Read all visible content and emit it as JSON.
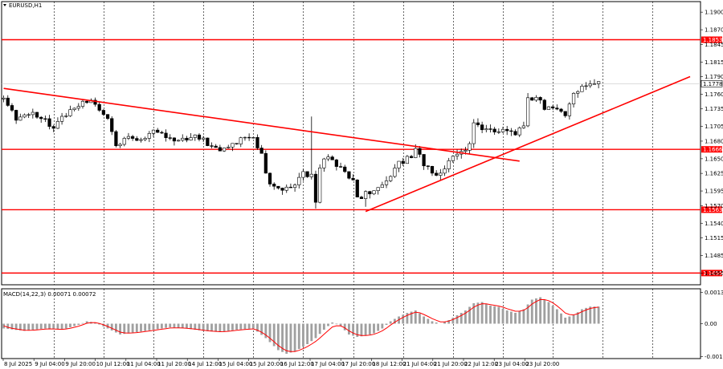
{
  "symbol_title": "EURUSD,H1",
  "macd_title": "MACD(14,22,3) 0.00071 0.00072",
  "colors": {
    "background": "#ffffff",
    "candle": "#000000",
    "grid": "#000000",
    "level": "#ff0000",
    "trendline": "#ff0000",
    "macd_hist": "#a0a0a0",
    "signal": "#ff0000",
    "price_tag_bg": "#ff0000",
    "current_price_bg": "#ffffff"
  },
  "chart_data": [
    {
      "type": "candlestick",
      "title": "EURUSD,H1",
      "ylim": [
        1.1455,
        1.19
      ],
      "y_ticks": [
        "1.1900",
        "1.1870",
        "1.1845",
        "1.1815",
        "1.1790",
        "1.1760",
        "1.1735",
        "1.1705",
        "1.1680",
        "1.1650",
        "1.1625",
        "1.1595",
        "1.1570",
        "1.1540",
        "1.1515",
        "1.1485",
        "1.1455"
      ],
      "x_tick_labels": [
        "8 Jul 2025",
        "9 Jul 04:00",
        "9 Jul 20:00",
        "10 Jul 12:00",
        "11 Jul 04:00",
        "11 Jul 20:00",
        "14 Jul 12:00",
        "15 Jul 04:00",
        "15 Jul 20:00",
        "16 Jul 12:00",
        "17 Jul 04:00",
        "17 Jul 20:00",
        "18 Jul 12:00",
        "21 Jul 04:00",
        "21 Jul 20:00",
        "22 Jul 12:00",
        "23 Jul 04:00",
        "23 Jul 20:00"
      ],
      "horizontal_levels": [
        {
          "label": "1.1853",
          "price": 1.1853
        },
        {
          "label": "1.1666",
          "price": 1.1666
        },
        {
          "label": "1.1563",
          "price": 1.1563
        },
        {
          "label": "1.1455",
          "price": 1.1455
        }
      ],
      "current_price": {
        "label": "1.1778",
        "price": 1.1778
      },
      "trendlines": [
        {
          "name": "descending",
          "from": {
            "bar": 0,
            "price": 1.177
          },
          "to": {
            "bar": 124,
            "price": 1.1646
          }
        },
        {
          "name": "ascending",
          "from": {
            "bar": 87,
            "price": 1.156
          },
          "to": {
            "bar": 165,
            "price": 1.179
          }
        }
      ],
      "close_path": [
        [
          0,
          1.1752
        ],
        [
          3,
          1.1715
        ],
        [
          6,
          1.173
        ],
        [
          9,
          1.172
        ],
        [
          12,
          1.1705
        ],
        [
          15,
          1.1725
        ],
        [
          18,
          1.1738
        ],
        [
          20,
          1.175
        ],
        [
          22,
          1.1745
        ],
        [
          25,
          1.1718
        ],
        [
          27,
          1.1675
        ],
        [
          30,
          1.169
        ],
        [
          33,
          1.168
        ],
        [
          36,
          1.17
        ],
        [
          39,
          1.169
        ],
        [
          42,
          1.1678
        ],
        [
          45,
          1.169
        ],
        [
          48,
          1.168
        ],
        [
          51,
          1.167
        ],
        [
          53,
          1.1666
        ],
        [
          56,
          1.168
        ],
        [
          58,
          1.1692
        ],
        [
          60,
          1.169
        ],
        [
          62,
          1.1655
        ],
        [
          64,
          1.1605
        ],
        [
          66,
          1.1598
        ],
        [
          68,
          1.1603
        ],
        [
          70,
          1.161
        ],
        [
          72,
          1.1625
        ],
        [
          74,
          1.1618
        ],
        [
          75,
          1.1575
        ],
        [
          76,
          1.164
        ],
        [
          78,
          1.165
        ],
        [
          80,
          1.164
        ],
        [
          82,
          1.163
        ],
        [
          84,
          1.161
        ],
        [
          85,
          1.1585
        ],
        [
          87,
          1.159
        ],
        [
          89,
          1.1598
        ],
        [
          91,
          1.161
        ],
        [
          93,
          1.1625
        ],
        [
          95,
          1.164
        ],
        [
          97,
          1.165
        ],
        [
          99,
          1.1665
        ],
        [
          100,
          1.166
        ],
        [
          101,
          1.164
        ],
        [
          103,
          1.1625
        ],
        [
          105,
          1.163
        ],
        [
          107,
          1.1645
        ],
        [
          109,
          1.1655
        ],
        [
          111,
          1.1668
        ],
        [
          112,
          1.167
        ],
        [
          113,
          1.171
        ],
        [
          115,
          1.17
        ],
        [
          117,
          1.1695
        ],
        [
          119,
          1.1692
        ],
        [
          121,
          1.1698
        ],
        [
          123,
          1.169
        ],
        [
          124,
          1.17
        ],
        [
          125,
          1.1705
        ],
        [
          126,
          1.1755
        ],
        [
          128,
          1.175
        ],
        [
          130,
          1.1738
        ],
        [
          132,
          1.174
        ],
        [
          134,
          1.1735
        ],
        [
          135,
          1.1725
        ],
        [
          136,
          1.174
        ],
        [
          137,
          1.1765
        ],
        [
          139,
          1.1775
        ],
        [
          141,
          1.178
        ],
        [
          143,
          1.1778
        ]
      ]
    },
    {
      "type": "bar",
      "title": "MACD(14,22,3) 0.00071 0.00072",
      "ylim": [
        -0.00137,
        0.0013
      ],
      "y_ticks": [
        "0.0013",
        "0.00",
        "-0.00137"
      ],
      "hist_path": [
        [
          0,
          -0.0002
        ],
        [
          5,
          -0.0003
        ],
        [
          10,
          -0.0002
        ],
        [
          14,
          -0.00025
        ],
        [
          18,
          -5e-05
        ],
        [
          20,
          0.0001
        ],
        [
          22,
          5e-05
        ],
        [
          25,
          -0.0002
        ],
        [
          28,
          -0.00045
        ],
        [
          32,
          -0.00035
        ],
        [
          36,
          -0.00025
        ],
        [
          40,
          -0.00015
        ],
        [
          44,
          -0.0002
        ],
        [
          48,
          -0.0003
        ],
        [
          52,
          -0.00035
        ],
        [
          56,
          -0.00025
        ],
        [
          60,
          -0.0002
        ],
        [
          63,
          -0.0006
        ],
        [
          66,
          -0.0011
        ],
        [
          68,
          -0.00125
        ],
        [
          70,
          -0.00115
        ],
        [
          73,
          -0.00085
        ],
        [
          75,
          -0.0006
        ],
        [
          77,
          -0.00025
        ],
        [
          79,
          5e-05
        ],
        [
          81,
          -0.0001
        ],
        [
          83,
          -0.00045
        ],
        [
          85,
          -0.00055
        ],
        [
          87,
          -0.0005
        ],
        [
          89,
          -0.0004
        ],
        [
          91,
          -0.0002
        ],
        [
          93,
          0.0001
        ],
        [
          95,
          0.0003
        ],
        [
          97,
          0.00045
        ],
        [
          99,
          0.00055
        ],
        [
          101,
          0.0003
        ],
        [
          103,
          0.0001
        ],
        [
          105,
          0.0
        ],
        [
          107,
          0.00015
        ],
        [
          109,
          0.00035
        ],
        [
          111,
          0.00055
        ],
        [
          113,
          0.00085
        ],
        [
          115,
          0.0009
        ],
        [
          117,
          0.00075
        ],
        [
          119,
          0.0007
        ],
        [
          121,
          0.00055
        ],
        [
          123,
          0.00045
        ],
        [
          125,
          0.0006
        ],
        [
          127,
          0.001
        ],
        [
          129,
          0.0011
        ],
        [
          131,
          0.0009
        ],
        [
          133,
          0.0006
        ],
        [
          135,
          0.00025
        ],
        [
          137,
          0.00035
        ],
        [
          139,
          0.0006
        ],
        [
          141,
          0.00071
        ],
        [
          143,
          0.00071
        ]
      ]
    }
  ]
}
